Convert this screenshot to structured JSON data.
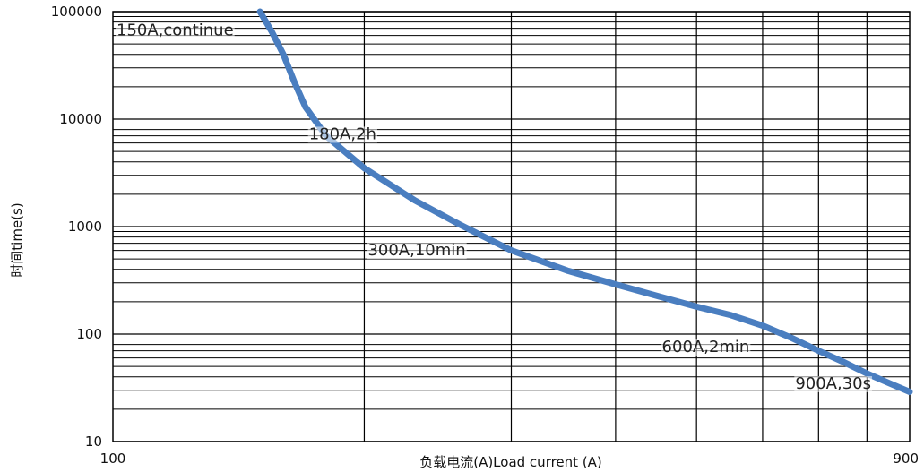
{
  "chart_data": {
    "type": "line",
    "title": "",
    "xlabel": "负载电流(A)Load current (A)",
    "ylabel": "时间time(s)",
    "x_scale": "log",
    "y_scale": "log",
    "xlim": [
      100,
      900
    ],
    "ylim": [
      10,
      100000
    ],
    "x_ticks": [
      {
        "value": 100,
        "label": "100"
      },
      {
        "value": 900,
        "label": "900"
      }
    ],
    "y_ticks": [
      {
        "value": 10,
        "label": "10"
      },
      {
        "value": 100,
        "label": "100"
      },
      {
        "value": 1000,
        "label": "1000"
      },
      {
        "value": 10000,
        "label": "10000"
      },
      {
        "value": 100000,
        "label": "100000"
      }
    ],
    "x_gridlines": [
      200,
      300,
      400,
      500,
      600,
      700,
      800
    ],
    "y_gridlines_per_decade": [
      2,
      3,
      4,
      5,
      6,
      7,
      8,
      9
    ],
    "grid": true,
    "line_color": "#4a7ec0",
    "series": [
      {
        "name": "",
        "x": [
          150,
          155,
          160,
          165,
          170,
          180,
          200,
          230,
          260,
          300,
          350,
          400,
          450,
          500,
          550,
          600,
          650,
          700,
          750,
          800,
          850,
          900
        ],
        "y": [
          100000,
          65000,
          40000,
          22000,
          13000,
          7000,
          3500,
          1750,
          1050,
          600,
          390,
          290,
          225,
          180,
          150,
          120,
          92,
          70,
          55,
          43,
          35,
          29
        ]
      }
    ],
    "annotations": [
      {
        "text": "150A,continue",
        "x": 100,
        "y": 60000
      },
      {
        "text": "180A,2h",
        "x": 170,
        "y": 6500
      },
      {
        "text": "300A,10min",
        "x": 200,
        "y": 540
      },
      {
        "text": "600A,2min",
        "x": 450,
        "y": 68
      },
      {
        "text": "900A,30s",
        "x": 650,
        "y": 31
      }
    ]
  }
}
